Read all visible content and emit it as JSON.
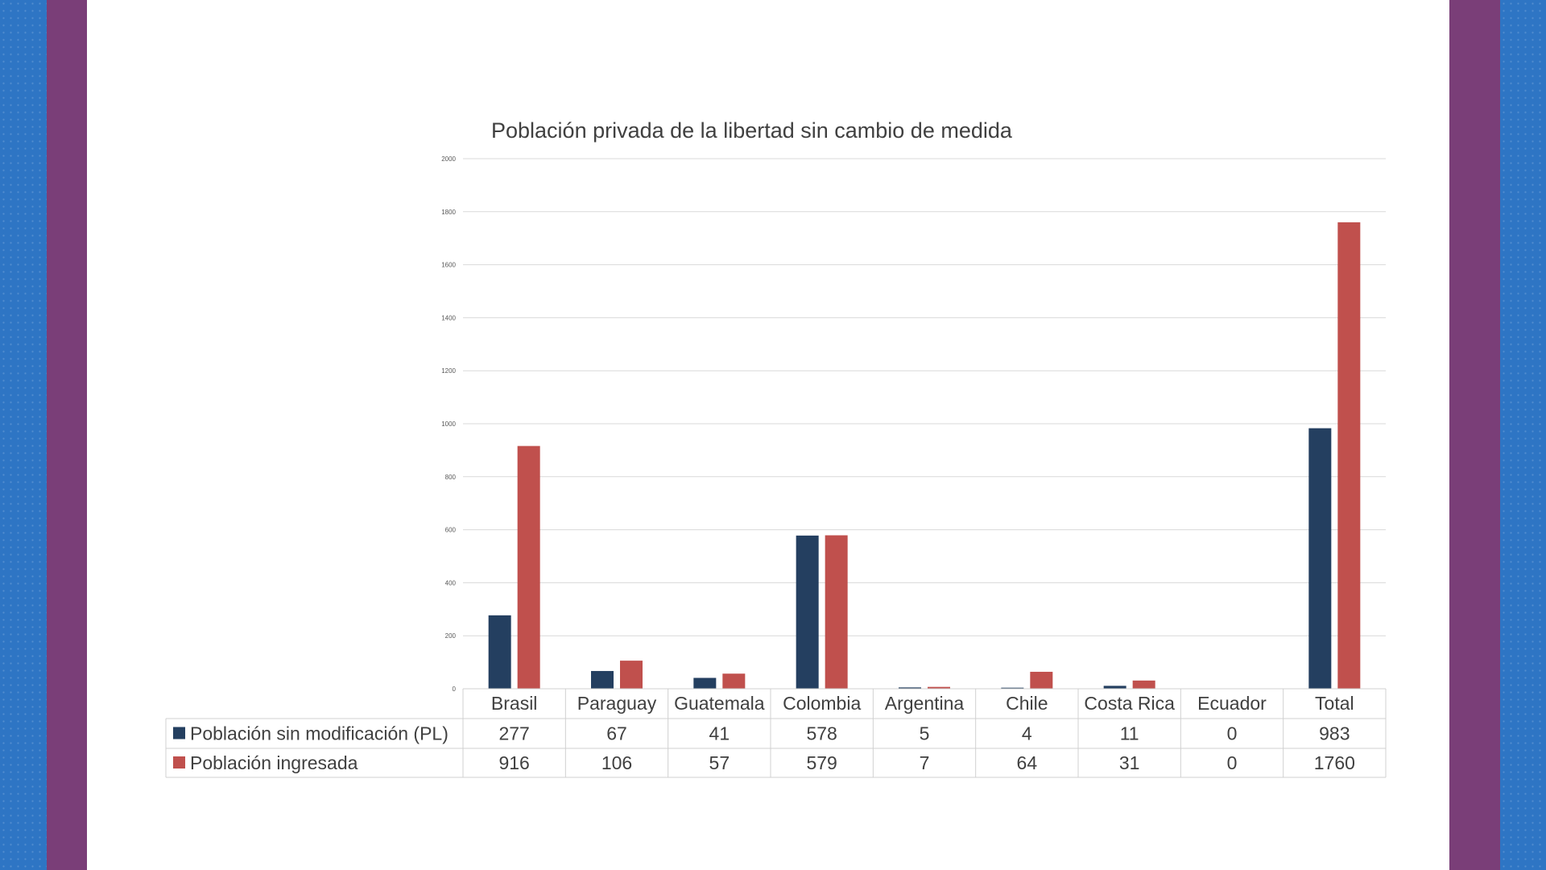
{
  "colors": {
    "series1": "#243f60",
    "series2": "#c0504d",
    "grid": "#d9d9d9",
    "sidebar_blue": "#2e75c4",
    "sidebar_purple": "#7a3e78"
  },
  "chart_data": {
    "type": "bar",
    "title": "Población privada de la libertad sin cambio de medida",
    "categories": [
      "Brasil",
      "Paraguay",
      "Guatemala",
      "Colombia",
      "Argentina",
      "Chile",
      "Costa Rica",
      "Ecuador",
      "Total"
    ],
    "series": [
      {
        "name": "Población sin modificación (PL)",
        "values": [
          277,
          67,
          41,
          578,
          5,
          4,
          11,
          0,
          983
        ]
      },
      {
        "name": "Población ingresada",
        "values": [
          916,
          106,
          57,
          579,
          7,
          64,
          31,
          0,
          1760
        ]
      }
    ],
    "ylim": [
      0,
      2000
    ],
    "yticks": [
      0,
      200,
      400,
      600,
      800,
      1000,
      1200,
      1400,
      1600,
      1800,
      2000
    ],
    "xlabel": "",
    "ylabel": "",
    "legend": "data-table-left",
    "grid": true
  }
}
